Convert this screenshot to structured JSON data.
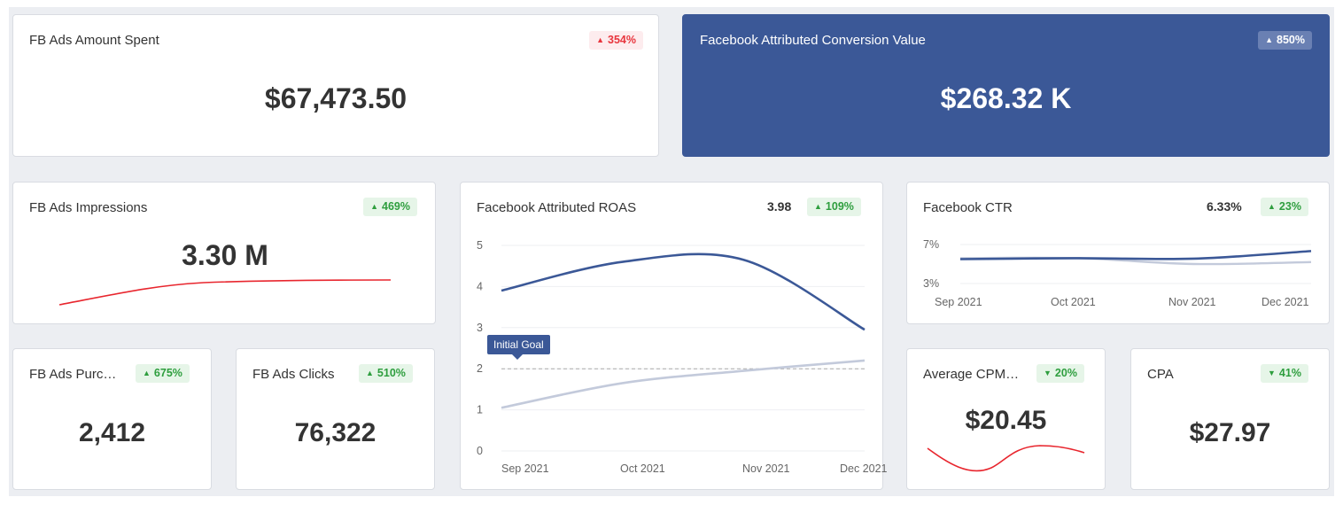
{
  "cards": {
    "fb_spent": {
      "title": "FB Ads Amount Spent",
      "value": "$67,473.50",
      "change": "354%",
      "direction": "up",
      "badge_color": "red"
    },
    "conversion_value": {
      "title": "Facebook Attributed Conversion Value",
      "value": "$268.32 K",
      "change": "850%",
      "direction": "up"
    },
    "impressions": {
      "title": "FB Ads Impressions",
      "value": "3.30 M",
      "change": "469%",
      "direction": "up"
    },
    "purchases": {
      "title": "FB Ads Purc…",
      "value": "2,412",
      "change": "675%",
      "direction": "up"
    },
    "clicks": {
      "title": "FB Ads Clicks",
      "value": "76,322",
      "change": "510%",
      "direction": "up"
    },
    "roas": {
      "title": "Facebook Attributed ROAS",
      "value": "3.98",
      "change": "109%",
      "direction": "up",
      "goal_label": "Initial Goal"
    },
    "ctr": {
      "title": "Facebook CTR",
      "value": "6.33%",
      "change": "23%",
      "direction": "up"
    },
    "cpm": {
      "title": "Average CPM…",
      "value": "$20.45",
      "change": "20%",
      "direction": "down"
    },
    "cpa": {
      "title": "CPA",
      "value": "$27.97",
      "change": "41%",
      "direction": "down"
    }
  },
  "icons": {
    "up": "triangle-up-icon",
    "down": "triangle-down-icon"
  },
  "colors": {
    "primary": "#3b5897",
    "secondary_series": "#c3cadb",
    "sparkline": "#e8262e",
    "positive": "#2e9e3e",
    "negative": "#e8363e"
  },
  "chart_data": [
    {
      "type": "line",
      "title": "Facebook Attributed ROAS",
      "x": [
        "Sep 2021",
        "Oct 2021",
        "Nov 2021",
        "Dec 2021"
      ],
      "ylim": [
        0,
        5
      ],
      "yticks": [
        "0",
        "1",
        "2",
        "3",
        "4",
        "5"
      ],
      "grid": true,
      "reference_line": {
        "label": "Initial Goal",
        "value": 2
      },
      "series": [
        {
          "values": [
            3.9,
            4.6,
            4.65,
            2.95
          ],
          "color": "#3b5897"
        },
        {
          "values": [
            1.05,
            1.65,
            1.95,
            2.2
          ],
          "color": "#c3cadb"
        }
      ]
    },
    {
      "type": "line",
      "title": "Facebook CTR",
      "x": [
        "Sep 2021",
        "Oct 2021",
        "Nov 2021",
        "Dec 2021"
      ],
      "yticks": [
        "3%",
        "7%"
      ],
      "ylim": [
        3,
        7
      ],
      "series": [
        {
          "values": [
            5.5,
            5.6,
            5.55,
            6.33
          ],
          "color": "#3b5897"
        },
        {
          "values": [
            5.6,
            5.6,
            5.0,
            5.2
          ],
          "color": "#c3cadb"
        }
      ]
    }
  ]
}
